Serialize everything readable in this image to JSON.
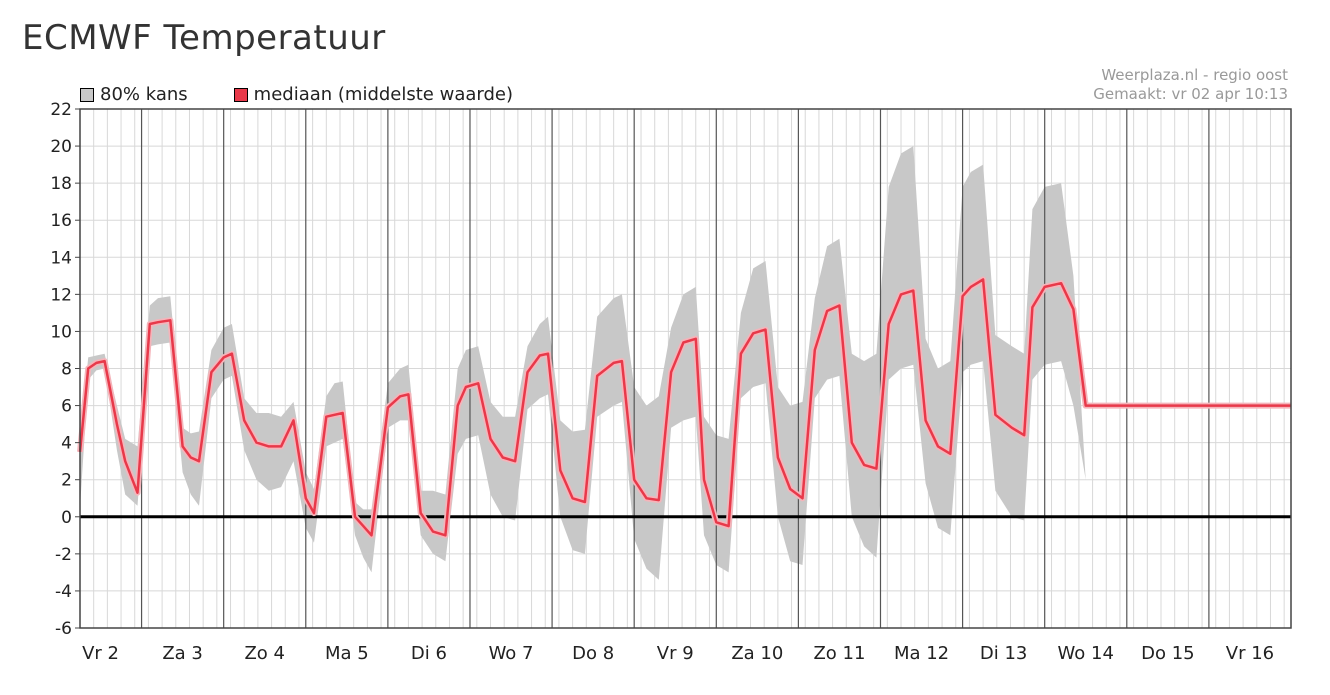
{
  "title": "ECMWF Temperatuur",
  "credit": {
    "line1": "Weerplaza.nl - regio oost",
    "line2": "Gemaakt: vr 02 apr 10:13"
  },
  "legend": [
    {
      "label": "80% kans",
      "color": "#c8c8c8"
    },
    {
      "label": "mediaan (middelste waarde)",
      "color": "#e8394a"
    }
  ],
  "colors": {
    "band": "#c8c8c8",
    "median": "#e8394a",
    "median_glow": "#f5b4ba",
    "zero_line": "#000000",
    "grid": "#d8d8d8",
    "day_line": "#555555"
  },
  "chart_data": {
    "type": "area",
    "ylim": [
      -6,
      22
    ],
    "yticks": [
      -6,
      -4,
      -2,
      0,
      2,
      4,
      6,
      8,
      10,
      12,
      14,
      16,
      18,
      20,
      22
    ],
    "day_labels": [
      "Vr 2",
      "Za 3",
      "Zo 4",
      "Ma 5",
      "Di 6",
      "Wo 7",
      "Do 8",
      "Vr 9",
      "Za 10",
      "Zo 11",
      "Ma 12",
      "Di 13",
      "Wo 14",
      "Do 15",
      "Vr 16"
    ],
    "x_days_span": [
      0,
      14.75
    ],
    "series": [
      {
        "name": "mediaan (middelste waarde)",
        "x": [
          0,
          0.1,
          0.2,
          0.3,
          0.45,
          0.55,
          0.7,
          0.85,
          0.95,
          1.1,
          1.25,
          1.35,
          1.45,
          1.6,
          1.75,
          1.85,
          2.0,
          2.15,
          2.3,
          2.45,
          2.6,
          2.75,
          2.85,
          3.0,
          3.1,
          3.2,
          3.35,
          3.45,
          3.55,
          3.75,
          3.9,
          4.0,
          4.15,
          4.3,
          4.45,
          4.6,
          4.7,
          4.85,
          5.0,
          5.15,
          5.3,
          5.45,
          5.6,
          5.7,
          5.85,
          6.0,
          6.15,
          6.3,
          6.5,
          6.6,
          6.75,
          6.9,
          7.05,
          7.2,
          7.35,
          7.5,
          7.6,
          7.75,
          7.9,
          8.05,
          8.2,
          8.35,
          8.5,
          8.65,
          8.8,
          8.95,
          9.1,
          9.25,
          9.4,
          9.55,
          9.7,
          9.85,
          10.0,
          10.15,
          10.3,
          10.45,
          10.6,
          10.75,
          10.85,
          11.0,
          11.15,
          11.35,
          11.5,
          11.6,
          11.75,
          11.95,
          12.1,
          12.25,
          12.4,
          12.55,
          12.75,
          12.95,
          13.1,
          13.25,
          13.4,
          13.6,
          13.8,
          13.95,
          14.1,
          14.3,
          14.45,
          14.55,
          14.65,
          14.75
        ],
        "values": [
          3.5,
          8.0,
          8.3,
          8.4,
          5.0,
          3.0,
          1.3,
          10.4,
          10.5,
          10.6,
          3.8,
          3.2,
          3.0,
          7.8,
          8.6,
          8.8,
          5.2,
          4.0,
          3.8,
          3.8,
          5.2,
          1.0,
          0.2,
          5.4,
          5.5,
          5.6,
          0.0,
          -0.5,
          -1.0,
          5.9,
          6.5,
          6.6,
          0.2,
          -0.8,
          -1.0,
          6.0,
          7.0,
          7.2,
          4.2,
          3.2,
          3.0,
          7.8,
          8.7,
          8.8,
          2.5,
          1.0,
          0.8,
          7.6,
          8.3,
          8.4,
          2.0,
          1.0,
          0.9,
          7.8,
          9.4,
          9.6,
          2.0,
          -0.3,
          -0.5,
          8.8,
          9.9,
          10.1,
          3.2,
          1.5,
          1.0,
          9.0,
          11.1,
          11.4,
          4.0,
          2.8,
          2.6,
          10.4,
          12.0,
          12.2,
          5.2,
          3.8,
          3.4,
          11.9,
          12.4,
          12.8,
          5.5,
          4.8,
          4.4,
          11.3,
          12.4,
          12.6,
          11.2,
          6.0,
          6.0,
          6.0,
          6.0,
          6.0,
          6.0,
          6.0,
          6.0,
          6.0,
          6.0,
          6.0,
          6.0,
          6.0,
          6.0,
          6.0,
          6.0,
          6.0
        ]
      },
      {
        "name": "80% kans",
        "x": [
          0,
          0.1,
          0.2,
          0.3,
          0.45,
          0.55,
          0.7,
          0.85,
          0.95,
          1.1,
          1.25,
          1.35,
          1.45,
          1.6,
          1.75,
          1.85,
          2.0,
          2.15,
          2.3,
          2.45,
          2.6,
          2.75,
          2.85,
          3.0,
          3.1,
          3.2,
          3.35,
          3.45,
          3.55,
          3.75,
          3.9,
          4.0,
          4.15,
          4.3,
          4.45,
          4.6,
          4.7,
          4.85,
          5.0,
          5.15,
          5.3,
          5.45,
          5.6,
          5.7,
          5.85,
          6.0,
          6.15,
          6.3,
          6.5,
          6.6,
          6.75,
          6.9,
          7.05,
          7.2,
          7.35,
          7.5,
          7.6,
          7.75,
          7.9,
          8.05,
          8.2,
          8.35,
          8.5,
          8.65,
          8.8,
          8.95,
          9.1,
          9.25,
          9.4,
          9.55,
          9.7,
          9.85,
          10.0,
          10.15,
          10.3,
          10.45,
          10.6,
          10.75,
          10.85,
          11.0,
          11.15,
          11.35,
          11.5,
          11.6,
          11.75,
          11.95,
          12.1,
          12.25,
          12.4,
          12.55,
          12.75,
          12.95,
          13.1,
          13.25,
          13.4,
          13.6,
          13.8,
          13.95,
          14.1,
          14.3,
          14.45,
          14.55,
          14.65,
          14.75
        ],
        "upper": [
          4.0,
          8.6,
          8.7,
          8.8,
          6.0,
          4.2,
          3.8,
          11.4,
          11.8,
          11.9,
          4.8,
          4.5,
          4.6,
          9.0,
          10.2,
          10.4,
          6.4,
          5.6,
          5.6,
          5.4,
          6.2,
          2.4,
          1.5,
          6.5,
          7.2,
          7.3,
          0.8,
          0.4,
          0.4,
          7.2,
          8.0,
          8.2,
          1.4,
          1.4,
          1.2,
          8.0,
          9.0,
          9.2,
          6.2,
          5.4,
          5.4,
          9.2,
          10.4,
          10.8,
          5.2,
          4.6,
          4.7,
          10.8,
          11.8,
          12.0,
          7.0,
          6.0,
          6.5,
          10.2,
          12.0,
          12.4,
          5.4,
          4.4,
          4.2,
          11.0,
          13.4,
          13.8,
          7.0,
          6.0,
          6.2,
          11.8,
          14.6,
          15.0,
          8.8,
          8.4,
          8.8,
          17.8,
          19.6,
          20.0,
          9.6,
          8.0,
          8.4,
          17.8,
          18.6,
          19.0,
          9.8,
          9.2,
          8.8,
          16.6,
          17.8,
          18.0,
          13.0,
          2.0,
          2.0,
          2.0,
          2.0,
          2.0,
          2.0,
          2.0,
          2.0,
          2.0,
          2.0,
          2.0,
          2.0,
          2.0,
          2.0,
          2.0,
          2.0,
          2.0
        ],
        "lower": [
          0.5,
          7.4,
          7.9,
          8.0,
          3.6,
          1.2,
          0.6,
          9.2,
          9.3,
          9.4,
          2.4,
          1.2,
          0.6,
          6.4,
          7.4,
          7.6,
          3.6,
          2.0,
          1.4,
          1.6,
          3.0,
          -0.6,
          -1.4,
          3.8,
          4.0,
          4.2,
          -1.0,
          -2.2,
          -3.0,
          4.8,
          5.2,
          5.2,
          -1.0,
          -2.0,
          -2.4,
          3.4,
          4.2,
          4.4,
          1.2,
          0.0,
          -0.2,
          5.8,
          6.4,
          6.6,
          0.0,
          -1.8,
          -2.0,
          5.4,
          6.0,
          6.2,
          -1.2,
          -2.8,
          -3.4,
          4.8,
          5.2,
          5.4,
          -1.0,
          -2.6,
          -3.0,
          6.4,
          7.0,
          7.2,
          0.0,
          -2.4,
          -2.6,
          6.4,
          7.4,
          7.6,
          0.0,
          -1.6,
          -2.2,
          7.4,
          8.0,
          8.2,
          1.8,
          -0.6,
          -1.0,
          7.8,
          8.2,
          8.4,
          1.4,
          0.0,
          -0.2,
          7.4,
          8.2,
          8.4,
          6.0,
          2.0,
          2.0,
          2.0,
          2.0,
          2.0,
          2.0,
          2.0,
          2.0,
          2.0,
          2.0,
          2.0,
          2.0,
          2.0,
          2.0,
          2.0,
          2.0,
          2.0
        ]
      }
    ]
  }
}
